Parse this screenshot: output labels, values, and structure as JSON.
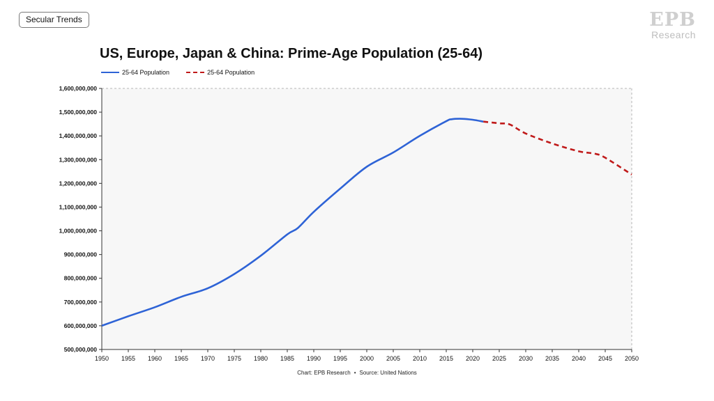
{
  "tag": {
    "label": "Secular Trends"
  },
  "brand": {
    "mark": "EPB",
    "sub": "Research"
  },
  "footer": {
    "chart_by": "Chart: EPB Research",
    "separator": "•",
    "source": "Source: United Nations"
  },
  "colors": {
    "historical": "#2e63d6",
    "projection": "#c01a1a",
    "plot_bg": "#f7f7f7",
    "grid": "#c9c9c9"
  },
  "chart_data": {
    "type": "line",
    "title": "US, Europe, Japan & China: Prime-Age Population (25-64)",
    "xlabel": "",
    "ylabel": "",
    "xlim": [
      1950,
      2050
    ],
    "ylim": [
      500000000,
      1600000000
    ],
    "x_ticks": [
      1950,
      1955,
      1960,
      1965,
      1970,
      1975,
      1980,
      1985,
      1990,
      1995,
      2000,
      2005,
      2010,
      2015,
      2020,
      2025,
      2030,
      2035,
      2040,
      2045,
      2050
    ],
    "y_ticks": [
      500000000,
      600000000,
      700000000,
      800000000,
      900000000,
      1000000000,
      1100000000,
      1200000000,
      1300000000,
      1400000000,
      1500000000,
      1600000000
    ],
    "y_tick_labels": [
      "500,000,000",
      "600,000,000",
      "700,000,000",
      "800,000,000",
      "900,000,000",
      "1,000,000,000",
      "1,100,000,000",
      "1,200,000,000",
      "1,300,000,000",
      "1,400,000,000",
      "1,500,000,000",
      "1,600,000,000"
    ],
    "legend_position": "top-left",
    "series": [
      {
        "name": "25-64 Population",
        "style": "solid",
        "x": [
          1950,
          1955,
          1960,
          1965,
          1970,
          1975,
          1980,
          1985,
          1987,
          1990,
          1995,
          2000,
          2005,
          2010,
          2015,
          2016,
          2018,
          2020,
          2022
        ],
        "values": [
          600000000,
          640000000,
          678000000,
          722000000,
          758000000,
          818000000,
          895000000,
          985000000,
          1012000000,
          1080000000,
          1178000000,
          1270000000,
          1330000000,
          1400000000,
          1462000000,
          1470000000,
          1472000000,
          1468000000,
          1460000000
        ]
      },
      {
        "name": "25-64 Population",
        "style": "dashed",
        "x": [
          2022,
          2025,
          2027,
          2030,
          2035,
          2040,
          2043,
          2045,
          2050
        ],
        "values": [
          1460000000,
          1453000000,
          1448000000,
          1410000000,
          1368000000,
          1335000000,
          1325000000,
          1308000000,
          1237000000
        ]
      }
    ]
  }
}
